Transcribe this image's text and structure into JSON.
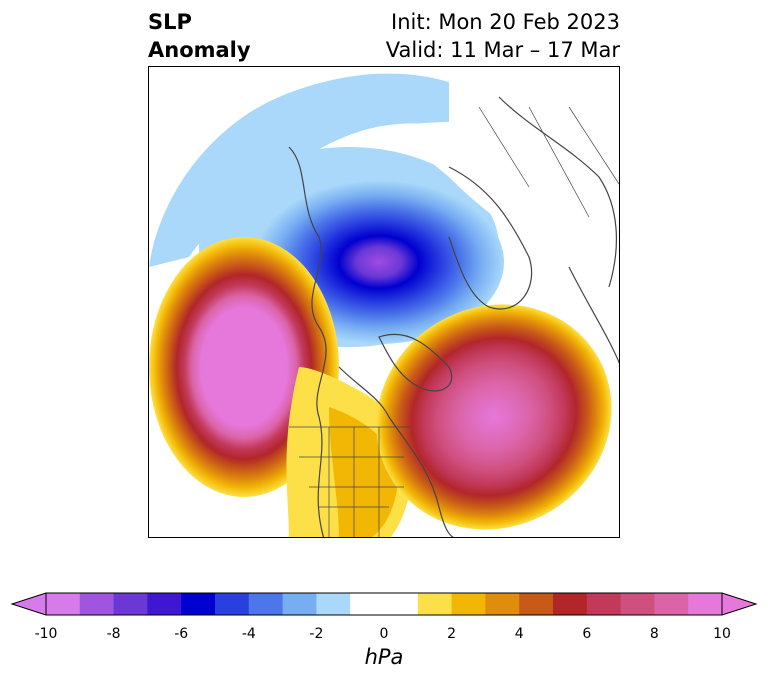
{
  "header": {
    "title_line1": "SLP",
    "title_line2": "Anomaly",
    "init": "Init: Mon 20 Feb 2023",
    "valid": "Valid: 11 Mar – 17 Mar"
  },
  "colorbar": {
    "unit": "hPa",
    "ticks": [
      "-10",
      "-8",
      "-6",
      "-4",
      "-2",
      "0",
      "2",
      "4",
      "6",
      "8",
      "10"
    ],
    "colors": [
      "#d77bea",
      "#9f55e0",
      "#6b38d6",
      "#3f17d2",
      "#0000d0",
      "#2a3fe0",
      "#4c76ea",
      "#77aef2",
      "#a9d8fa",
      "#ffffff",
      "#ffffff",
      "#fde047",
      "#f2b705",
      "#e08c0c",
      "#c85a17",
      "#b2262a",
      "#c2395a",
      "#cf4f7e",
      "#db64a8",
      "#e678dc"
    ],
    "extend_low_color": "#d77bea",
    "extend_high_color": "#e678dc"
  }
}
